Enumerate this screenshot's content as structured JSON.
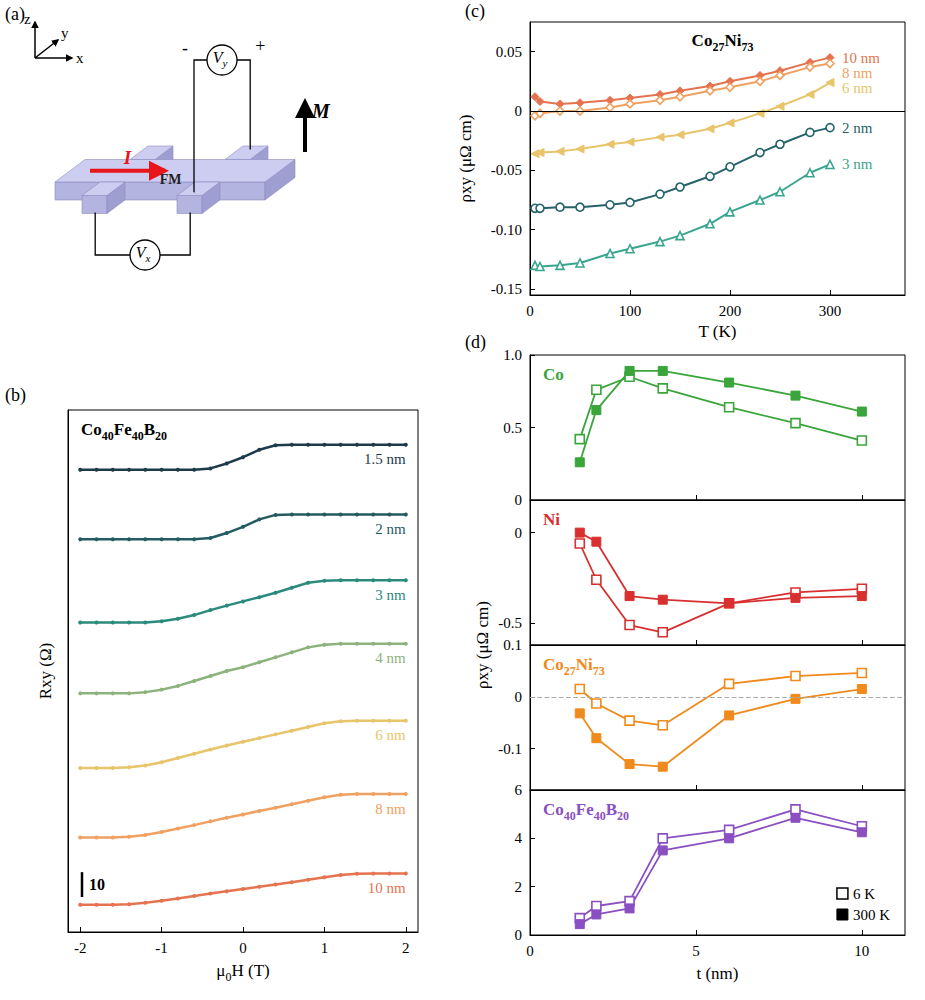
{
  "diagram": {
    "letter": "(a)",
    "axes": {
      "z": "z",
      "y": "y",
      "x": "x"
    },
    "current": "I",
    "layer": "FM",
    "magnetization": "M",
    "voltmeter_y": "Vy",
    "voltmeter_x": "Vx",
    "plus": "+",
    "minus": "-"
  },
  "chart_data": [
    {
      "type": "line",
      "letter": "(b)",
      "title": "Co40Fe40B20",
      "xlabel": "μ0H (T)",
      "ylabel": "Rxy (Ω)",
      "xlim": [
        -2.15,
        2.15
      ],
      "xticks": [
        -2,
        -1,
        0,
        1,
        2
      ],
      "ylim": [
        0,
        210
      ],
      "yticks": [],
      "tick_labels": "x",
      "grid": false,
      "scale_bar": 10,
      "x": [
        -2,
        -1.8,
        -1.6,
        -1.4,
        -1.2,
        -1,
        -0.8,
        -0.6,
        -0.4,
        -0.2,
        0,
        0.2,
        0.4,
        0.6,
        0.8,
        1,
        1.2,
        1.4,
        1.6,
        1.8,
        2
      ],
      "series": [
        {
          "name": "1.5 nm",
          "color": "#1d3a4a",
          "values": [
            186,
            186,
            186,
            186,
            186,
            186,
            186,
            186,
            186.5,
            188.5,
            191,
            194,
            195.8,
            196,
            196,
            196,
            196,
            196,
            196,
            196,
            196
          ]
        },
        {
          "name": "2 nm",
          "color": "#245a63",
          "values": [
            158,
            158,
            158,
            158,
            158,
            158,
            158,
            158,
            158.5,
            160.5,
            163,
            166,
            167.8,
            168,
            168,
            168,
            168,
            168,
            168,
            168,
            168
          ]
        },
        {
          "name": "3 nm",
          "color": "#2a8a7c",
          "values": [
            124.5,
            124.5,
            124.5,
            124.5,
            124.5,
            125,
            126,
            127.5,
            129.5,
            131.3,
            133,
            134.7,
            136.5,
            138.5,
            140.5,
            141.3,
            141.5,
            141.5,
            141.5,
            141.5,
            141.5
          ]
        },
        {
          "name": "4 nm",
          "color": "#8db37c",
          "values": [
            96,
            96,
            96,
            96,
            96.5,
            97.5,
            99,
            101,
            103,
            105,
            106.5,
            108.5,
            110.5,
            112.5,
            114.5,
            115.6,
            116,
            116,
            116,
            116,
            116
          ]
        },
        {
          "name": "6 nm",
          "color": "#e8c46a",
          "values": [
            66,
            66,
            66,
            66.3,
            67,
            68.3,
            70,
            71.7,
            73.4,
            75,
            76.5,
            78,
            79.5,
            81,
            82.5,
            84,
            84.8,
            85,
            85,
            85,
            85
          ]
        },
        {
          "name": "8 nm",
          "color": "#f0a060",
          "values": [
            38,
            38,
            38,
            38.3,
            39,
            40.2,
            41.6,
            43,
            44.5,
            46,
            47.3,
            48.7,
            50,
            51.4,
            52.8,
            54.2,
            55.2,
            55.5,
            55.5,
            55.5,
            55.5
          ]
        },
        {
          "name": "10 nm",
          "color": "#e5734f",
          "values": [
            11,
            11,
            11,
            11.2,
            11.8,
            12.6,
            13.5,
            14.5,
            15.5,
            16.4,
            17.3,
            18.2,
            19.1,
            20,
            21,
            22,
            22.9,
            23.4,
            23.5,
            23.5,
            23.5
          ]
        }
      ]
    },
    {
      "type": "line",
      "letter": "(c)",
      "title": "Co27Ni73",
      "xlabel": "T (K)",
      "ylabel": "ρxy (μΩ cm)",
      "xlim": [
        0,
        375
      ],
      "xticks": [
        0,
        100,
        200,
        300
      ],
      "ylim": [
        -0.155,
        0.075
      ],
      "yticks": [
        -0.15,
        {
          "value": -0.1,
          "label": "-0.10"
        },
        -0.05,
        0,
        0.05
      ],
      "grid": false,
      "hline": {
        "value": 0,
        "line_style": "solid"
      },
      "x": [
        5,
        10,
        30,
        50,
        80,
        100,
        130,
        150,
        180,
        200,
        230,
        250,
        280,
        300
      ],
      "series": [
        {
          "name": "10 nm",
          "color": "#e5734f",
          "marker": "diamond",
          "values": [
            0.012,
            0.008,
            0.006,
            0.007,
            0.009,
            0.011,
            0.014,
            0.017,
            0.021,
            0.025,
            0.03,
            0.034,
            0.041,
            0.045
          ]
        },
        {
          "name": "8 nm",
          "color": "#f0a060",
          "marker": "open-diamond",
          "values": [
            -0.004,
            -0.002,
            0.0,
            0.0,
            0.003,
            0.006,
            0.009,
            0.012,
            0.017,
            0.02,
            0.025,
            0.03,
            0.037,
            0.04
          ]
        },
        {
          "name": "6 nm",
          "color": "#e8c46a",
          "marker": "triangle-left",
          "values": [
            -0.036,
            -0.035,
            -0.034,
            -0.032,
            -0.028,
            -0.026,
            -0.022,
            -0.02,
            -0.015,
            -0.01,
            -0.002,
            0.004,
            0.014,
            0.024
          ]
        },
        {
          "name": "2 nm",
          "color": "#24636a",
          "marker": "open-circle",
          "values": [
            -0.082,
            -0.082,
            -0.081,
            -0.081,
            -0.079,
            -0.077,
            -0.07,
            -0.064,
            -0.055,
            -0.047,
            -0.035,
            -0.028,
            -0.018,
            -0.014
          ]
        },
        {
          "name": "3 nm",
          "color": "#3aa58f",
          "marker": "open-triangle",
          "values": [
            -0.13,
            -0.131,
            -0.13,
            -0.128,
            -0.12,
            -0.116,
            -0.11,
            -0.105,
            -0.095,
            -0.085,
            -0.075,
            -0.068,
            -0.052,
            -0.045
          ]
        }
      ]
    },
    {
      "type": "line",
      "letter": "(d)",
      "xlabel": "t (nm)",
      "ylabel": "ρxy (μΩ cm)",
      "xlim": [
        0,
        11.3
      ],
      "xticks": [
        0,
        5,
        10
      ],
      "grid": false,
      "legend": "lower right",
      "x": [
        1.5,
        2,
        3,
        4,
        6,
        8,
        10
      ],
      "panels": [
        {
          "title": "Co",
          "ylim": [
            0,
            1
          ],
          "yticks": [
            0,
            0.5,
            {
              "value": 1,
              "label": "1.0"
            }
          ],
          "tick_labels": "y",
          "series": [
            {
              "name": "6 K",
              "color": "#3aa53a",
              "marker": "open-square",
              "values": [
                0.42,
                0.76,
                0.85,
                0.77,
                0.64,
                0.53,
                0.41
              ]
            },
            {
              "name": "300 K",
              "color": "#3aa53a",
              "marker": "square",
              "values": [
                0.26,
                0.62,
                0.89,
                0.89,
                0.81,
                0.72,
                0.61
              ]
            }
          ]
        },
        {
          "title": "Ni",
          "ylim": [
            -0.62,
            0.18
          ],
          "yticks": [
            -0.5,
            0
          ],
          "tick_labels": "y",
          "series": [
            {
              "name": "6 K",
              "color": "#d83030",
              "marker": "open-square",
              "values": [
                -0.06,
                -0.26,
                -0.51,
                -0.55,
                -0.39,
                -0.33,
                -0.31
              ]
            },
            {
              "name": "300 K",
              "color": "#d83030",
              "marker": "square",
              "values": [
                0.0,
                -0.05,
                -0.35,
                -0.37,
                -0.39,
                -0.36,
                -0.35
              ]
            }
          ]
        },
        {
          "title": "Co27Ni73",
          "ylim": [
            -0.18,
            0.1
          ],
          "yticks": [
            -0.1,
            0,
            0.1
          ],
          "tick_labels": "y",
          "hline": {
            "value": 0,
            "line_style": "dashed"
          },
          "series": [
            {
              "name": "6 K",
              "color": "#f08a1c",
              "marker": "open-square",
              "values": [
                0.015,
                -0.013,
                -0.046,
                -0.055,
                0.025,
                0.04,
                0.046
              ]
            },
            {
              "name": "300 K",
              "color": "#f08a1c",
              "marker": "square",
              "values": [
                -0.032,
                -0.08,
                -0.13,
                -0.135,
                -0.036,
                -0.004,
                0.015
              ]
            }
          ]
        },
        {
          "title": "Co40Fe40B20",
          "ylim": [
            0,
            6
          ],
          "yticks": [
            0,
            2,
            4,
            6
          ],
          "series": [
            {
              "name": "6 K",
              "color": "#8a4fc0",
              "marker": "open-square",
              "values": [
                0.7,
                1.2,
                1.4,
                4.0,
                4.35,
                5.2,
                4.5
              ]
            },
            {
              "name": "300 K",
              "color": "#8a4fc0",
              "marker": "square",
              "values": [
                0.45,
                0.85,
                1.1,
                3.5,
                4.0,
                4.85,
                4.25
              ]
            }
          ]
        }
      ]
    }
  ]
}
